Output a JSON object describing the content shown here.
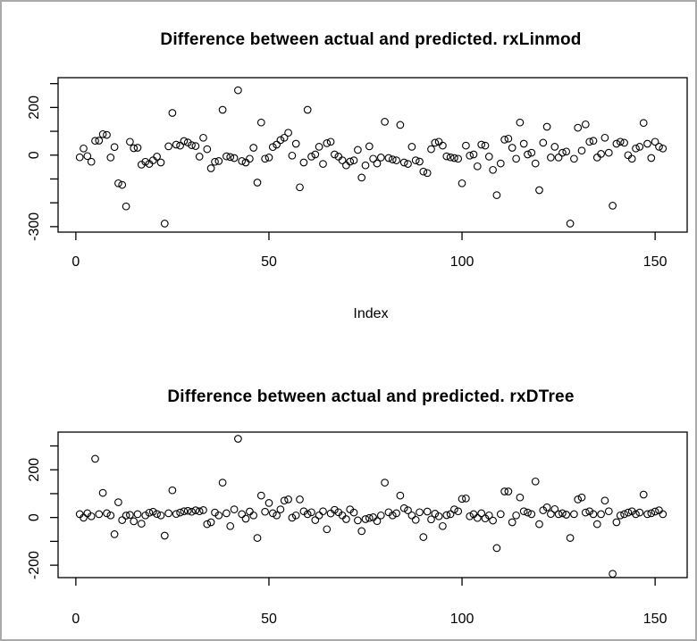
{
  "window": {
    "background": "#ffffff",
    "border_color": "#a9a9a9"
  },
  "chart_data": [
    {
      "type": "scatter",
      "title": "Difference between actual and predicted. rxLinmod",
      "xlabel": "Index",
      "ylabel": "",
      "grid": false,
      "legend": "none",
      "marker": "open-circle",
      "point_color": "#000000",
      "x_ticks": [
        0,
        50,
        100,
        150
      ],
      "y_ticks": [
        300,
        200,
        100,
        0,
        -100,
        -200,
        -300
      ],
      "y_tick_labels": [
        {
          "value": 200,
          "label": "200"
        },
        {
          "value": 0,
          "label": "0"
        },
        {
          "value": -300,
          "label": "-300"
        }
      ],
      "xlim": [
        -4.6,
        158.3
      ],
      "ylim": [
        -323,
        325
      ],
      "points": [
        [
          1,
          -9
        ],
        [
          2,
          28
        ],
        [
          3,
          -4
        ],
        [
          4,
          -28
        ],
        [
          5,
          60
        ],
        [
          6,
          61
        ],
        [
          7,
          88
        ],
        [
          8,
          85
        ],
        [
          9,
          -10
        ],
        [
          10,
          34
        ],
        [
          11,
          -118
        ],
        [
          12,
          -125
        ],
        [
          13,
          -215
        ],
        [
          14,
          56
        ],
        [
          15,
          29
        ],
        [
          16,
          31
        ],
        [
          17,
          -40
        ],
        [
          18,
          -28
        ],
        [
          19,
          -37
        ],
        [
          20,
          -22
        ],
        [
          21,
          -6
        ],
        [
          22,
          -31
        ],
        [
          23,
          -287
        ],
        [
          24,
          37
        ],
        [
          25,
          177
        ],
        [
          26,
          44
        ],
        [
          27,
          40
        ],
        [
          28,
          59
        ],
        [
          29,
          53
        ],
        [
          30,
          42
        ],
        [
          31,
          38
        ],
        [
          32,
          -6
        ],
        [
          33,
          73
        ],
        [
          34,
          25
        ],
        [
          35,
          -55
        ],
        [
          36,
          -28
        ],
        [
          37,
          -25
        ],
        [
          38,
          190
        ],
        [
          39,
          -5
        ],
        [
          40,
          -8
        ],
        [
          41,
          -12
        ],
        [
          42,
          272
        ],
        [
          43,
          -25
        ],
        [
          44,
          -31
        ],
        [
          45,
          -15
        ],
        [
          46,
          31
        ],
        [
          47,
          -115
        ],
        [
          48,
          137
        ],
        [
          49,
          -15
        ],
        [
          50,
          -10
        ],
        [
          51,
          34
        ],
        [
          52,
          44
        ],
        [
          53,
          63
        ],
        [
          54,
          73
        ],
        [
          55,
          94
        ],
        [
          56,
          -2
        ],
        [
          57,
          48
        ],
        [
          58,
          -135
        ],
        [
          59,
          -31
        ],
        [
          60,
          190
        ],
        [
          61,
          -6
        ],
        [
          62,
          3
        ],
        [
          63,
          35
        ],
        [
          64,
          -37
        ],
        [
          65,
          50
        ],
        [
          66,
          56
        ],
        [
          67,
          3
        ],
        [
          68,
          -6
        ],
        [
          69,
          -22
        ],
        [
          70,
          -43
        ],
        [
          71,
          -27
        ],
        [
          72,
          -22
        ],
        [
          73,
          22
        ],
        [
          74,
          -94
        ],
        [
          75,
          -43
        ],
        [
          76,
          37
        ],
        [
          77,
          -15
        ],
        [
          78,
          -35
        ],
        [
          79,
          -10
        ],
        [
          80,
          140
        ],
        [
          81,
          -12
        ],
        [
          82,
          -18
        ],
        [
          83,
          -22
        ],
        [
          84,
          127
        ],
        [
          85,
          -31
        ],
        [
          86,
          -37
        ],
        [
          87,
          35
        ],
        [
          88,
          -22
        ],
        [
          89,
          -27
        ],
        [
          90,
          -69
        ],
        [
          91,
          -75
        ],
        [
          92,
          25
        ],
        [
          93,
          52
        ],
        [
          94,
          56
        ],
        [
          95,
          40
        ],
        [
          96,
          -5
        ],
        [
          97,
          -9
        ],
        [
          98,
          -12
        ],
        [
          99,
          -15
        ],
        [
          100,
          -118
        ],
        [
          101,
          40
        ],
        [
          102,
          -2
        ],
        [
          103,
          3
        ],
        [
          104,
          -47
        ],
        [
          105,
          44
        ],
        [
          106,
          40
        ],
        [
          107,
          -6
        ],
        [
          108,
          -62
        ],
        [
          109,
          -168
        ],
        [
          110,
          -35
        ],
        [
          111,
          65
        ],
        [
          112,
          69
        ],
        [
          113,
          31
        ],
        [
          114,
          -15
        ],
        [
          115,
          137
        ],
        [
          116,
          48
        ],
        [
          117,
          3
        ],
        [
          118,
          10
        ],
        [
          119,
          -35
        ],
        [
          120,
          -147
        ],
        [
          121,
          52
        ],
        [
          122,
          119
        ],
        [
          123,
          -10
        ],
        [
          124,
          35
        ],
        [
          125,
          -10
        ],
        [
          126,
          10
        ],
        [
          127,
          15
        ],
        [
          128,
          -287
        ],
        [
          129,
          -15
        ],
        [
          130,
          115
        ],
        [
          131,
          19
        ],
        [
          132,
          129
        ],
        [
          133,
          56
        ],
        [
          134,
          60
        ],
        [
          135,
          -10
        ],
        [
          136,
          5
        ],
        [
          137,
          73
        ],
        [
          138,
          10
        ],
        [
          139,
          -212
        ],
        [
          140,
          48
        ],
        [
          141,
          56
        ],
        [
          142,
          52
        ],
        [
          143,
          0
        ],
        [
          144,
          -15
        ],
        [
          145,
          28
        ],
        [
          146,
          35
        ],
        [
          147,
          135
        ],
        [
          148,
          48
        ],
        [
          149,
          -12
        ],
        [
          150,
          56
        ],
        [
          151,
          35
        ],
        [
          152,
          28
        ]
      ]
    },
    {
      "type": "scatter",
      "title": "Difference between actual and predicted. rxDTree",
      "xlabel": "",
      "ylabel": "",
      "grid": false,
      "legend": "none",
      "marker": "open-circle",
      "point_color": "#000000",
      "x_ticks": [
        0,
        50,
        100,
        150
      ],
      "y_ticks": [
        300,
        200,
        100,
        0,
        -100,
        -200
      ],
      "y_tick_labels": [
        {
          "value": 200,
          "label": "200"
        },
        {
          "value": 0,
          "label": "0"
        },
        {
          "value": -200,
          "label": "-200"
        }
      ],
      "xlim": [
        -4.6,
        158.3
      ],
      "ylim": [
        -252,
        358
      ],
      "points": [
        [
          1,
          14
        ],
        [
          2,
          -1
        ],
        [
          3,
          18
        ],
        [
          4,
          5
        ],
        [
          5,
          246
        ],
        [
          6,
          14
        ],
        [
          7,
          103
        ],
        [
          8,
          18
        ],
        [
          9,
          9
        ],
        [
          10,
          -70
        ],
        [
          11,
          64
        ],
        [
          12,
          -11
        ],
        [
          13,
          8
        ],
        [
          14,
          11
        ],
        [
          15,
          -16
        ],
        [
          16,
          14
        ],
        [
          17,
          -26
        ],
        [
          18,
          9
        ],
        [
          19,
          20
        ],
        [
          20,
          24
        ],
        [
          21,
          15
        ],
        [
          22,
          9
        ],
        [
          23,
          -76
        ],
        [
          24,
          18
        ],
        [
          25,
          114
        ],
        [
          26,
          15
        ],
        [
          27,
          21
        ],
        [
          28,
          26
        ],
        [
          29,
          28
        ],
        [
          30,
          24
        ],
        [
          31,
          30
        ],
        [
          32,
          26
        ],
        [
          33,
          31
        ],
        [
          34,
          -28
        ],
        [
          35,
          -20
        ],
        [
          36,
          21
        ],
        [
          37,
          9
        ],
        [
          38,
          146
        ],
        [
          39,
          18
        ],
        [
          40,
          -36
        ],
        [
          41,
          34
        ],
        [
          42,
          330
        ],
        [
          43,
          14
        ],
        [
          44,
          -5
        ],
        [
          45,
          25
        ],
        [
          46,
          9
        ],
        [
          47,
          -86
        ],
        [
          48,
          92
        ],
        [
          49,
          24
        ],
        [
          50,
          61
        ],
        [
          51,
          18
        ],
        [
          52,
          9
        ],
        [
          53,
          34
        ],
        [
          54,
          71
        ],
        [
          55,
          76
        ],
        [
          56,
          -1
        ],
        [
          57,
          9
        ],
        [
          58,
          76
        ],
        [
          59,
          26
        ],
        [
          60,
          14
        ],
        [
          61,
          22
        ],
        [
          62,
          -11
        ],
        [
          63,
          9
        ],
        [
          64,
          26
        ],
        [
          65,
          -49
        ],
        [
          66,
          17
        ],
        [
          67,
          32
        ],
        [
          68,
          22
        ],
        [
          69,
          9
        ],
        [
          70,
          -7
        ],
        [
          71,
          34
        ],
        [
          72,
          21
        ],
        [
          73,
          -12
        ],
        [
          74,
          -57
        ],
        [
          75,
          -7
        ],
        [
          76,
          -2
        ],
        [
          77,
          1
        ],
        [
          78,
          -15
        ],
        [
          79,
          9
        ],
        [
          80,
          146
        ],
        [
          81,
          22
        ],
        [
          82,
          9
        ],
        [
          83,
          18
        ],
        [
          84,
          92
        ],
        [
          85,
          39
        ],
        [
          86,
          30
        ],
        [
          87,
          9
        ],
        [
          88,
          -10
        ],
        [
          89,
          22
        ],
        [
          90,
          -82
        ],
        [
          91,
          25
        ],
        [
          92,
          -8
        ],
        [
          93,
          16
        ],
        [
          94,
          5
        ],
        [
          95,
          -36
        ],
        [
          96,
          10
        ],
        [
          97,
          14
        ],
        [
          98,
          34
        ],
        [
          99,
          26
        ],
        [
          100,
          78
        ],
        [
          101,
          80
        ],
        [
          102,
          5
        ],
        [
          103,
          14
        ],
        [
          104,
          -2
        ],
        [
          105,
          18
        ],
        [
          106,
          -4
        ],
        [
          107,
          9
        ],
        [
          108,
          -13
        ],
        [
          109,
          -128
        ],
        [
          110,
          14
        ],
        [
          111,
          109
        ],
        [
          112,
          109
        ],
        [
          113,
          -20
        ],
        [
          114,
          9
        ],
        [
          115,
          84
        ],
        [
          116,
          26
        ],
        [
          117,
          21
        ],
        [
          118,
          14
        ],
        [
          119,
          151
        ],
        [
          120,
          -28
        ],
        [
          121,
          30
        ],
        [
          122,
          43
        ],
        [
          123,
          15
        ],
        [
          124,
          35
        ],
        [
          125,
          14
        ],
        [
          126,
          18
        ],
        [
          127,
          12
        ],
        [
          128,
          -86
        ],
        [
          129,
          14
        ],
        [
          130,
          76
        ],
        [
          131,
          84
        ],
        [
          132,
          21
        ],
        [
          133,
          26
        ],
        [
          134,
          14
        ],
        [
          135,
          -28
        ],
        [
          136,
          14
        ],
        [
          137,
          71
        ],
        [
          138,
          26
        ],
        [
          139,
          -236
        ],
        [
          140,
          -20
        ],
        [
          141,
          9
        ],
        [
          142,
          14
        ],
        [
          143,
          21
        ],
        [
          144,
          26
        ],
        [
          145,
          14
        ],
        [
          146,
          21
        ],
        [
          147,
          96
        ],
        [
          148,
          14
        ],
        [
          149,
          18
        ],
        [
          150,
          25
        ],
        [
          151,
          30
        ],
        [
          152,
          14
        ]
      ]
    }
  ]
}
